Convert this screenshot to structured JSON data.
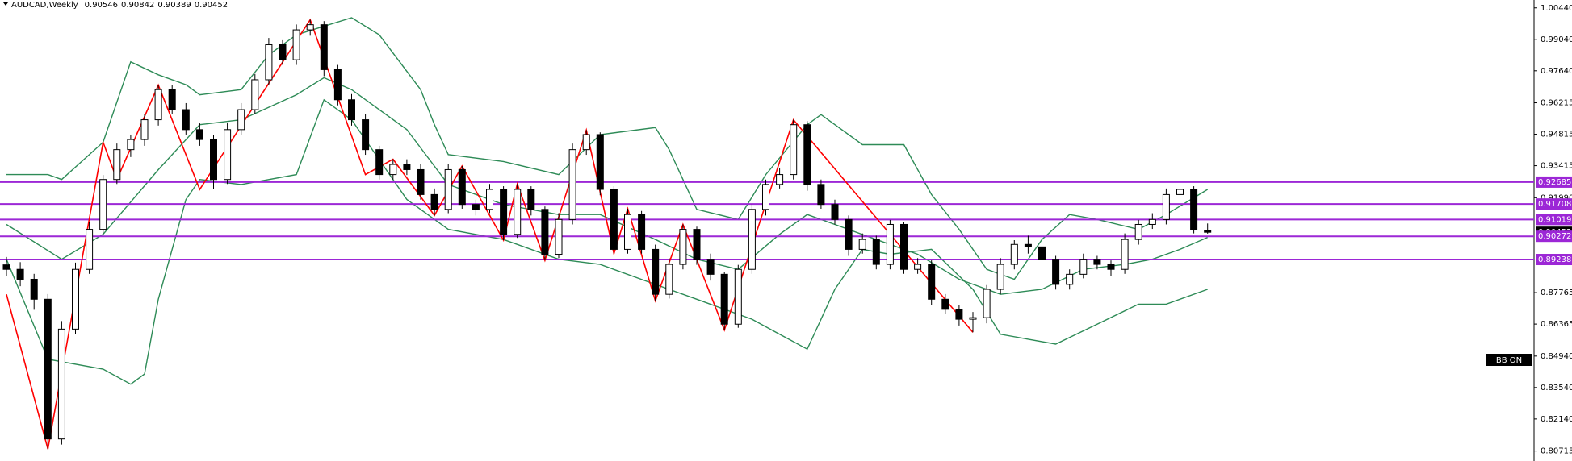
{
  "chart_data": {
    "type": "candlestick",
    "symbol": "AUDCAD,Weekly",
    "candles": [
      [
        0.89,
        0.8935,
        0.885,
        0.888
      ],
      [
        0.888,
        0.8912,
        0.8805,
        0.8836
      ],
      [
        0.8836,
        0.886,
        0.87,
        0.8747
      ],
      [
        0.8747,
        0.877,
        0.808,
        0.8125
      ],
      [
        0.8125,
        0.865,
        0.81,
        0.8614
      ],
      [
        0.8614,
        0.891,
        0.859,
        0.888
      ],
      [
        0.888,
        0.909,
        0.886,
        0.9058
      ],
      [
        0.9058,
        0.93,
        0.904,
        0.928
      ],
      [
        0.928,
        0.944,
        0.926,
        0.9413
      ],
      [
        0.9413,
        0.948,
        0.938,
        0.9458
      ],
      [
        0.9458,
        0.957,
        0.943,
        0.9546
      ],
      [
        0.9546,
        0.97,
        0.952,
        0.968
      ],
      [
        0.968,
        0.97,
        0.957,
        0.9591
      ],
      [
        0.9591,
        0.962,
        0.948,
        0.9502
      ],
      [
        0.9502,
        0.953,
        0.943,
        0.9458
      ],
      [
        0.9458,
        0.948,
        0.9236,
        0.928
      ],
      [
        0.928,
        0.953,
        0.926,
        0.9502
      ],
      [
        0.9502,
        0.962,
        0.948,
        0.9591
      ],
      [
        0.9591,
        0.975,
        0.957,
        0.9724
      ],
      [
        0.9724,
        0.991,
        0.97,
        0.988
      ],
      [
        0.988,
        0.99,
        0.979,
        0.9813
      ],
      [
        0.9813,
        0.997,
        0.979,
        0.9946
      ],
      [
        0.9946,
        0.9991,
        0.992,
        0.9969
      ],
      [
        0.9969,
        0.9985,
        0.974,
        0.9769
      ],
      [
        0.9769,
        0.979,
        0.961,
        0.9635
      ],
      [
        0.9635,
        0.966,
        0.952,
        0.9546
      ],
      [
        0.9546,
        0.957,
        0.939,
        0.9413
      ],
      [
        0.9413,
        0.943,
        0.928,
        0.9302
      ],
      [
        0.9302,
        0.937,
        0.928,
        0.9347
      ],
      [
        0.9347,
        0.937,
        0.93,
        0.9324
      ],
      [
        0.9324,
        0.935,
        0.919,
        0.9213
      ],
      [
        0.9213,
        0.924,
        0.912,
        0.9147
      ],
      [
        0.9147,
        0.935,
        0.913,
        0.9324
      ],
      [
        0.9324,
        0.934,
        0.915,
        0.9169
      ],
      [
        0.9169,
        0.919,
        0.912,
        0.9147
      ],
      [
        0.9147,
        0.926,
        0.913,
        0.9236
      ],
      [
        0.9236,
        0.925,
        0.901,
        0.9036
      ],
      [
        0.9036,
        0.926,
        0.902,
        0.9236
      ],
      [
        0.9236,
        0.925,
        0.912,
        0.9147
      ],
      [
        0.9147,
        0.916,
        0.892,
        0.8947
      ],
      [
        0.8947,
        0.913,
        0.893,
        0.9102
      ],
      [
        0.9102,
        0.944,
        0.908,
        0.9413
      ],
      [
        0.9413,
        0.95,
        0.939,
        0.948
      ],
      [
        0.948,
        0.949,
        0.921,
        0.9236
      ],
      [
        0.9236,
        0.925,
        0.895,
        0.8969
      ],
      [
        0.8969,
        0.915,
        0.895,
        0.9124
      ],
      [
        0.9124,
        0.914,
        0.895,
        0.8969
      ],
      [
        0.8969,
        0.899,
        0.874,
        0.8769
      ],
      [
        0.8769,
        0.893,
        0.875,
        0.8902
      ],
      [
        0.8902,
        0.908,
        0.888,
        0.9058
      ],
      [
        0.9058,
        0.907,
        0.89,
        0.8925
      ],
      [
        0.8925,
        0.895,
        0.883,
        0.8858
      ],
      [
        0.8858,
        0.887,
        0.861,
        0.8636
      ],
      [
        0.8636,
        0.89,
        0.862,
        0.888
      ],
      [
        0.888,
        0.917,
        0.886,
        0.9147
      ],
      [
        0.9147,
        0.928,
        0.912,
        0.9258
      ],
      [
        0.9258,
        0.933,
        0.924,
        0.9302
      ],
      [
        0.9302,
        0.9546,
        0.928,
        0.9524
      ],
      [
        0.9524,
        0.954,
        0.923,
        0.9258
      ],
      [
        0.9258,
        0.928,
        0.915,
        0.9169
      ],
      [
        0.9169,
        0.919,
        0.908,
        0.9102
      ],
      [
        0.9102,
        0.912,
        0.894,
        0.8969
      ],
      [
        0.8969,
        0.904,
        0.895,
        0.9013
      ],
      [
        0.9013,
        0.903,
        0.888,
        0.8902
      ],
      [
        0.8902,
        0.91,
        0.888,
        0.908
      ],
      [
        0.908,
        0.909,
        0.886,
        0.888
      ],
      [
        0.888,
        0.893,
        0.886,
        0.8902
      ],
      [
        0.8902,
        0.892,
        0.872,
        0.8747
      ],
      [
        0.8747,
        0.877,
        0.868,
        0.8702
      ],
      [
        0.8702,
        0.872,
        0.863,
        0.8658
      ],
      [
        0.8658,
        0.869,
        0.86,
        0.8665
      ],
      [
        0.8665,
        0.881,
        0.864,
        0.8791
      ],
      [
        0.8791,
        0.893,
        0.877,
        0.8902
      ],
      [
        0.8902,
        0.901,
        0.888,
        0.8991
      ],
      [
        0.8991,
        0.903,
        0.895,
        0.898
      ],
      [
        0.898,
        0.899,
        0.89,
        0.8925
      ],
      [
        0.8925,
        0.894,
        0.879,
        0.8813
      ],
      [
        0.8813,
        0.888,
        0.879,
        0.8858
      ],
      [
        0.8858,
        0.895,
        0.884,
        0.8925
      ],
      [
        0.8925,
        0.894,
        0.888,
        0.8902
      ],
      [
        0.8902,
        0.892,
        0.885,
        0.888
      ],
      [
        0.888,
        0.904,
        0.886,
        0.9013
      ],
      [
        0.9013,
        0.91,
        0.899,
        0.908
      ],
      [
        0.908,
        0.913,
        0.906,
        0.9102
      ],
      [
        0.9102,
        0.924,
        0.908,
        0.9213
      ],
      [
        0.9213,
        0.9268,
        0.919,
        0.9236
      ],
      [
        0.9236,
        0.925,
        0.904,
        0.9055
      ],
      [
        0.90546,
        0.90842,
        0.90389,
        0.90452
      ]
    ],
    "bands": {
      "color": "#2e8b57",
      "upper": {
        "x": [
          0,
          3,
          4,
          7,
          9,
          11,
          13,
          14,
          17,
          19,
          21,
          25,
          27,
          30,
          31,
          32,
          36,
          40,
          43,
          47,
          48,
          50,
          53,
          55,
          58,
          59,
          62,
          65,
          67,
          69,
          71,
          73,
          75,
          77,
          79,
          82,
          84,
          87
        ],
        "values": [
          0.9302,
          0.9302,
          0.928,
          0.9446,
          0.9804,
          0.9746,
          0.9702,
          0.9657,
          0.968,
          0.9835,
          0.9924,
          1.0,
          0.9924,
          0.968,
          0.9524,
          0.9391,
          0.936,
          0.9302,
          0.948,
          0.9511,
          0.9413,
          0.9147,
          0.9102,
          0.9302,
          0.9524,
          0.9569,
          0.9435,
          0.9435,
          0.9213,
          0.9058,
          0.888,
          0.8836,
          0.9013,
          0.9124,
          0.9102,
          0.9058,
          0.9124,
          0.9236
        ]
      },
      "middle": {
        "x": [
          0,
          4,
          7,
          11,
          14,
          17,
          21,
          23,
          25,
          29,
          32,
          36,
          40,
          43,
          47,
          50,
          53,
          56,
          58,
          60,
          63,
          66,
          69,
          72,
          75,
          78,
          81,
          83,
          85,
          87
        ],
        "values": [
          0.908,
          0.8925,
          0.9036,
          0.9324,
          0.9524,
          0.9546,
          0.9657,
          0.9733,
          0.968,
          0.9502,
          0.9258,
          0.9169,
          0.9124,
          0.9124,
          0.9013,
          0.8925,
          0.888,
          0.9036,
          0.9124,
          0.908,
          0.9013,
          0.8947,
          0.8836,
          0.8769,
          0.8791,
          0.888,
          0.8902,
          0.8925,
          0.8969,
          0.9022
        ]
      },
      "lower": {
        "x": [
          0,
          3,
          7,
          9,
          10,
          11,
          13,
          14,
          17,
          21,
          23,
          25,
          29,
          32,
          36,
          40,
          43,
          47,
          50,
          54,
          56,
          58,
          60,
          62,
          64,
          67,
          70,
          72,
          74,
          76,
          79,
          82,
          84,
          87
        ],
        "values": [
          0.8925,
          0.848,
          0.8436,
          0.8369,
          0.8414,
          0.8747,
          0.9191,
          0.928,
          0.9258,
          0.9302,
          0.9635,
          0.9546,
          0.9191,
          0.9058,
          0.9013,
          0.8925,
          0.8902,
          0.8813,
          0.8747,
          0.8658,
          0.8591,
          0.8525,
          0.8791,
          0.8969,
          0.8947,
          0.8969,
          0.8791,
          0.8591,
          0.8569,
          0.8547,
          0.8636,
          0.8725,
          0.8725,
          0.8791
        ]
      }
    },
    "zigzag": {
      "color": "#ff0000",
      "x": [
        0,
        3,
        7,
        8,
        11,
        14,
        22,
        26,
        28,
        31,
        33,
        36,
        37,
        39,
        42,
        44,
        45,
        47,
        49,
        52,
        57,
        70
      ],
      "values": [
        0.8769,
        0.808,
        0.9446,
        0.928,
        0.97,
        0.9236,
        0.9991,
        0.9302,
        0.937,
        0.912,
        0.934,
        0.901,
        0.926,
        0.892,
        0.95,
        0.895,
        0.915,
        0.874,
        0.908,
        0.861,
        0.9546,
        0.86
      ]
    },
    "levels": [
      0.92685,
      0.91708,
      0.91019,
      0.90272,
      0.89238
    ],
    "level_color": "#9c27d6",
    "current_price": 0.90452,
    "indicator_label": "BB ON",
    "ylim": [
      0.8027,
      1.0079
    ],
    "yticks": [
      {
        "value": 1.0044,
        "label": "1.00440"
      },
      {
        "value": 0.9904,
        "label": "0.99040"
      },
      {
        "value": 0.9764,
        "label": "0.97640"
      },
      0.96215,
      0.94815,
      0.93415,
      {
        "value": 0.9199,
        "label": "0.91990"
      },
      0.87765,
      0.86365,
      {
        "value": 0.8494,
        "label": "0.84940"
      },
      {
        "value": 0.8354,
        "label": "0.83540"
      },
      {
        "value": 0.8214,
        "label": "0.82140"
      },
      0.80715
    ]
  }
}
